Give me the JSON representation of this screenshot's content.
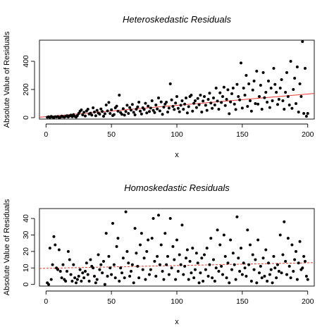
{
  "chart_data": [
    {
      "type": "scatter",
      "title": "Heteroskedastic Residuals",
      "xlabel": "x",
      "ylabel": "Absolute Value of Residuals",
      "xlim": [
        -5,
        205
      ],
      "ylim": [
        -10,
        550
      ],
      "xticks": [
        0,
        50,
        100,
        150,
        200
      ],
      "yticks": [
        0,
        200,
        400
      ],
      "trend_line": {
        "from": [
          -5,
          3
        ],
        "to": [
          205,
          172
        ],
        "color": "#e8382f",
        "style": "solid"
      },
      "point_color": "#000000",
      "x": [
        1,
        2,
        3,
        4,
        5,
        6,
        7,
        8,
        9,
        10,
        11,
        12,
        13,
        14,
        15,
        16,
        17,
        18,
        19,
        20,
        21,
        22,
        23,
        24,
        25,
        26,
        27,
        28,
        29,
        30,
        31,
        32,
        33,
        34,
        35,
        36,
        37,
        38,
        39,
        40,
        41,
        42,
        43,
        44,
        45,
        46,
        47,
        48,
        49,
        50,
        51,
        52,
        53,
        54,
        55,
        56,
        57,
        58,
        59,
        60,
        61,
        62,
        63,
        64,
        65,
        66,
        67,
        68,
        69,
        70,
        71,
        72,
        73,
        74,
        75,
        76,
        77,
        78,
        79,
        80,
        81,
        82,
        83,
        84,
        85,
        86,
        87,
        88,
        89,
        90,
        91,
        92,
        93,
        94,
        95,
        96,
        97,
        98,
        99,
        100,
        101,
        102,
        103,
        104,
        105,
        106,
        107,
        108,
        109,
        110,
        111,
        112,
        113,
        114,
        115,
        116,
        117,
        118,
        119,
        120,
        121,
        122,
        123,
        124,
        125,
        126,
        127,
        128,
        129,
        130,
        131,
        132,
        133,
        134,
        135,
        136,
        137,
        138,
        139,
        140,
        141,
        142,
        143,
        144,
        145,
        146,
        147,
        148,
        149,
        150,
        151,
        152,
        153,
        154,
        155,
        156,
        157,
        158,
        159,
        160,
        161,
        162,
        163,
        164,
        165,
        166,
        167,
        168,
        169,
        170,
        171,
        172,
        173,
        174,
        175,
        176,
        177,
        178,
        179,
        180,
        181,
        182,
        183,
        184,
        185,
        186,
        187,
        188,
        189,
        190,
        191,
        192,
        193,
        194,
        195,
        196,
        197,
        198,
        199,
        200
      ],
      "y": [
        3,
        6,
        2,
        9,
        4,
        1,
        7,
        5,
        8,
        2,
        3,
        11,
        6,
        4,
        9,
        14,
        5,
        12,
        18,
        7,
        22,
        10,
        4,
        15,
        30,
        45,
        55,
        20,
        38,
        12,
        48,
        60,
        26,
        32,
        18,
        70,
        40,
        14,
        52,
        33,
        25,
        62,
        44,
        10,
        28,
        90,
        48,
        108,
        30,
        56,
        15,
        22,
        70,
        82,
        46,
        160,
        36,
        24,
        64,
        18,
        44,
        88,
        30,
        72,
        54,
        94,
        38,
        20,
        60,
        76,
        110,
        46,
        26,
        70,
        58,
        102,
        34,
        82,
        44,
        68,
        120,
        52,
        36,
        90,
        62,
        140,
        48,
        112,
        24,
        75,
        96,
        110,
        40,
        68,
        240,
        126,
        80,
        58,
        104,
        150,
        66,
        42,
        88,
        120,
        60,
        96,
        140,
        34,
        78,
        150,
        160,
        46,
        102,
        120,
        72,
        136,
        92,
        160,
        40,
        118,
        150,
        88,
        52,
        130,
        174,
        104,
        66,
        140,
        90,
        210,
        118,
        60,
        176,
        108,
        150,
        216,
        86,
        130,
        198,
        28,
        112,
        170,
        210,
        96,
        58,
        236,
        150,
        126,
        388,
        68,
        210,
        160,
        300,
        80,
        240,
        120,
        46,
        196,
        260,
        100,
        330,
        96,
        150,
        230,
        60,
        320,
        142,
        180,
        110,
        260,
        72,
        210,
        120,
        350,
        236,
        180,
        94,
        130,
        210,
        270,
        120,
        60,
        180,
        320,
        150,
        90,
        400,
        66,
        200,
        280,
        100,
        360,
        40,
        240,
        150,
        540,
        30,
        350,
        10,
        30
      ]
    },
    {
      "type": "scatter",
      "title": "Homoskedastic Residuals",
      "xlabel": "x",
      "ylabel": "Absolute Value of Residuals",
      "xlim": [
        -5,
        205
      ],
      "ylim": [
        -1,
        46
      ],
      "xticks": [
        0,
        50,
        100,
        150,
        200
      ],
      "yticks": [
        0,
        10,
        20,
        30,
        40
      ],
      "trend_line": {
        "from": [
          -5,
          9.7
        ],
        "to": [
          205,
          13.2
        ],
        "color": "#e8382f",
        "style": "dashed"
      },
      "point_color": "#000000",
      "x": [
        1,
        2,
        3,
        4,
        5,
        6,
        7,
        8,
        9,
        10,
        11,
        12,
        13,
        14,
        15,
        16,
        17,
        18,
        19,
        20,
        21,
        22,
        23,
        24,
        25,
        26,
        27,
        28,
        29,
        30,
        31,
        32,
        33,
        34,
        35,
        36,
        37,
        38,
        39,
        40,
        41,
        42,
        43,
        44,
        45,
        46,
        47,
        48,
        49,
        50,
        51,
        52,
        53,
        54,
        55,
        56,
        57,
        58,
        59,
        60,
        61,
        62,
        63,
        64,
        65,
        66,
        67,
        68,
        69,
        70,
        71,
        72,
        73,
        74,
        75,
        76,
        77,
        78,
        79,
        80,
        81,
        82,
        83,
        84,
        85,
        86,
        87,
        88,
        89,
        90,
        91,
        92,
        93,
        94,
        95,
        96,
        97,
        98,
        99,
        100,
        101,
        102,
        103,
        104,
        105,
        106,
        107,
        108,
        109,
        110,
        111,
        112,
        113,
        114,
        115,
        116,
        117,
        118,
        119,
        120,
        121,
        122,
        123,
        124,
        125,
        126,
        127,
        128,
        129,
        130,
        131,
        132,
        133,
        134,
        135,
        136,
        137,
        138,
        139,
        140,
        141,
        142,
        143,
        144,
        145,
        146,
        147,
        148,
        149,
        150,
        151,
        152,
        153,
        154,
        155,
        156,
        157,
        158,
        159,
        160,
        161,
        162,
        163,
        164,
        165,
        166,
        167,
        168,
        169,
        170,
        171,
        172,
        173,
        174,
        175,
        176,
        177,
        178,
        179,
        180,
        181,
        182,
        183,
        184,
        185,
        186,
        187,
        188,
        189,
        190,
        191,
        192,
        193,
        194,
        195,
        196,
        197,
        198,
        199,
        200
      ],
      "y": [
        1,
        0,
        22,
        3,
        12,
        29,
        24,
        10,
        9,
        21,
        8,
        4,
        12,
        3,
        2,
        8,
        20,
        15,
        6,
        2,
        12,
        4,
        1,
        3,
        5,
        9,
        2,
        7,
        4,
        8,
        13,
        6,
        2,
        15,
        11,
        10,
        5,
        1,
        3,
        18,
        9,
        12,
        7,
        14,
        0,
        31,
        5,
        17,
        10,
        6,
        37,
        12,
        4,
        23,
        28,
        2,
        10,
        7,
        16,
        4,
        44,
        20,
        13,
        5,
        8,
        12,
        1,
        34,
        19,
        11,
        4,
        24,
        31,
        9,
        16,
        3,
        20,
        27,
        6,
        9,
        28,
        40,
        14,
        5,
        17,
        42,
        12,
        24,
        8,
        3,
        31,
        12,
        17,
        6,
        40,
        10,
        23,
        15,
        3,
        27,
        8,
        18,
        12,
        36,
        6,
        11,
        16,
        21,
        3,
        14,
        7,
        22,
        4,
        9,
        19,
        13,
        1,
        7,
        16,
        2,
        18,
        9,
        22,
        5,
        12,
        28,
        4,
        15,
        2,
        10,
        33,
        8,
        24,
        11,
        6,
        30,
        17,
        4,
        13,
        1,
        27,
        9,
        19,
        12,
        3,
        41,
        16,
        8,
        22,
        6,
        13,
        10,
        5,
        33,
        12,
        24,
        2,
        18,
        9,
        15,
        1,
        27,
        7,
        11,
        4,
        16,
        5,
        21,
        2,
        13,
        6,
        9,
        1,
        17,
        10,
        4,
        12,
        8,
        30,
        7,
        18,
        38,
        14,
        6,
        28,
        11,
        4,
        24,
        8,
        15,
        20,
        3,
        13,
        26,
        9,
        10,
        17,
        14,
        5,
        3
      ]
    }
  ]
}
